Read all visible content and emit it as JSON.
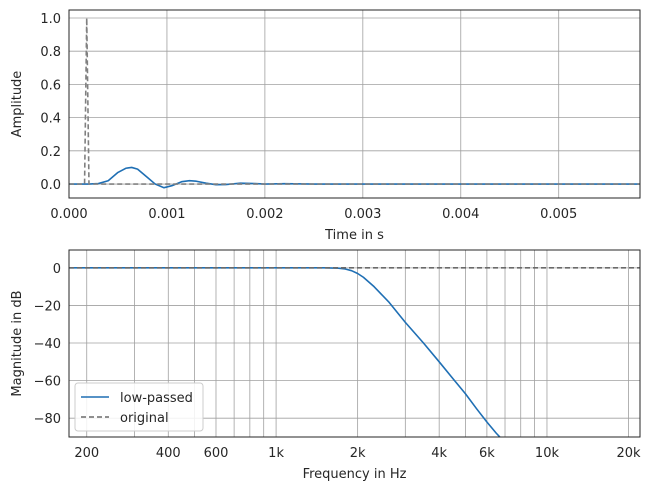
{
  "colors": {
    "low_passed": "#1f6fb4",
    "original": "#808080",
    "grid": "#a0a0a0",
    "axes": "#262626"
  },
  "chart_data": [
    {
      "type": "line",
      "xlabel": "Time in s",
      "ylabel": "Amplitude",
      "xlim": [
        0,
        0.00583
      ],
      "ylim": [
        -0.084,
        1.048
      ],
      "xticks": [
        0,
        0.001,
        0.002,
        0.003,
        0.004,
        0.005
      ],
      "xtick_labels": [
        "0.000",
        "0.001",
        "0.002",
        "0.003",
        "0.004",
        "0.005"
      ],
      "yticks": [
        0,
        0.2,
        0.4,
        0.6,
        0.8,
        1.0
      ],
      "ytick_labels": [
        "0.0",
        "0.2",
        "0.4",
        "0.6",
        "0.8",
        "1.0"
      ],
      "grid": true,
      "series": [
        {
          "key": "low_passed",
          "style": "solid",
          "x": [
            0,
            0.0002,
            0.0003,
            0.0004,
            0.0005,
            0.00058,
            0.00064,
            0.0007,
            0.0008,
            0.00088,
            0.00097,
            0.00105,
            0.00115,
            0.00123,
            0.0013,
            0.0014,
            0.0015,
            0.0016,
            0.00175,
            0.0019,
            0.002,
            0.0022,
            0.0025,
            0.003,
            0.00583
          ],
          "y": [
            0,
            0,
            0.003,
            0.02,
            0.07,
            0.095,
            0.1,
            0.09,
            0.04,
            0.0,
            -0.022,
            -0.01,
            0.014,
            0.02,
            0.017,
            0.005,
            -0.004,
            -0.003,
            0.005,
            0.003,
            0,
            0.002,
            0,
            0,
            0
          ]
        },
        {
          "key": "original",
          "style": "dashed",
          "x": [
            0,
            0.000159,
            0.000181,
            0.000204,
            0.00583
          ],
          "y": [
            0,
            0,
            1.0,
            0,
            0
          ]
        }
      ]
    },
    {
      "type": "line",
      "xlabel": "Frequency in Hz",
      "ylabel": "Magnitude in dB",
      "xscale": "log",
      "xlim": [
        172,
        22050
      ],
      "ylim": [
        -90,
        9.5
      ],
      "xticks": [
        200,
        400,
        600,
        1000,
        2000,
        4000,
        6000,
        10000,
        20000
      ],
      "xtick_labels": [
        "200",
        "400",
        "600",
        "1k",
        "2k",
        "4k",
        "6k",
        "10k",
        "20k"
      ],
      "xgrid": [
        200,
        300,
        400,
        500,
        600,
        700,
        800,
        900,
        1000,
        2000,
        3000,
        4000,
        5000,
        6000,
        7000,
        8000,
        9000,
        10000,
        20000
      ],
      "yticks": [
        0,
        -20,
        -40,
        -60,
        -80
      ],
      "ytick_labels": [
        "0",
        "−20",
        "−40",
        "−60",
        "−80"
      ],
      "grid": true,
      "legend": {
        "placement": "lower-left",
        "entries": [
          "low-passed",
          "original"
        ]
      },
      "series": [
        {
          "key": "low_passed",
          "name": "low-passed",
          "style": "solid",
          "x": [
            172,
            1000,
            1500,
            1700,
            1800,
            1900,
            2000,
            2100,
            2300,
            2600,
            3000,
            3500,
            4000,
            4500,
            5000,
            5500,
            6000,
            6500,
            6800
          ],
          "y": [
            0,
            0,
            0,
            -0.2,
            -0.6,
            -1.5,
            -3,
            -5,
            -10,
            -18,
            -29,
            -40,
            -50,
            -59,
            -67,
            -75,
            -82,
            -88,
            -91
          ]
        },
        {
          "key": "original",
          "name": "original",
          "style": "dashed",
          "x": [
            172,
            22050
          ],
          "y": [
            0,
            0
          ]
        }
      ]
    }
  ]
}
